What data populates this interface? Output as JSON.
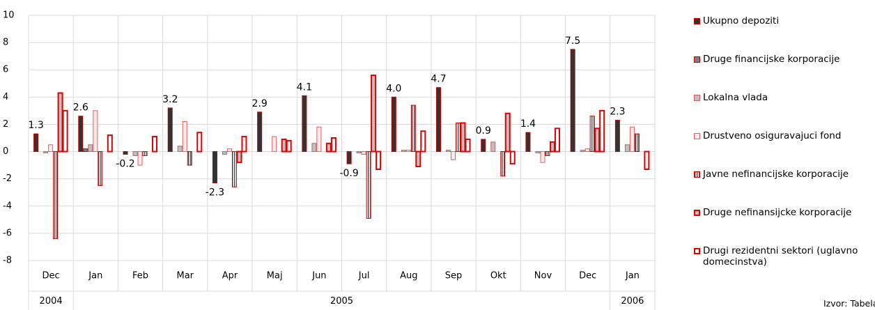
{
  "chart_data": {
    "type": "bar",
    "categories": [
      "Dec",
      "Jan",
      "Feb",
      "Mar",
      "Apr",
      "Maj",
      "Jun",
      "Jul",
      "Aug",
      "Sep",
      "Okt",
      "Nov",
      "Dec",
      "Jan"
    ],
    "years": [
      "2004",
      "2005",
      "2005",
      "2005",
      "2005",
      "2005",
      "2005",
      "2005",
      "2005",
      "2005",
      "2005",
      "2005",
      "2005",
      "2006"
    ],
    "ylim": [
      -8,
      10
    ],
    "yticks": [
      -8,
      -6,
      -4,
      -2,
      0,
      2,
      4,
      6,
      8,
      10
    ],
    "grid": true,
    "series": [
      {
        "name": "Ukupno depoziti",
        "color": "#333333",
        "edgecolor": "#c00000",
        "values": [
          1.3,
          2.6,
          -0.2,
          3.2,
          -2.3,
          2.9,
          4.1,
          -0.9,
          4.0,
          4.7,
          0.9,
          1.4,
          7.5,
          2.3
        ],
        "value_labels": [
          "1.3",
          "2.6",
          "-0.2",
          "3.2",
          "-2.3",
          "2.9",
          "4.1",
          "-0.9",
          "4.0",
          "4.7",
          "0.9",
          "1.4",
          "7.5",
          "2.3"
        ]
      },
      {
        "name": "Druge financijske korporacije",
        "color": "#7f7f7f",
        "edgecolor": "#c00000",
        "values": [
          0,
          0.2,
          0,
          0,
          0,
          0,
          0,
          0,
          0,
          0,
          0,
          0,
          0,
          0
        ]
      },
      {
        "name": "Lokalna vlada",
        "color": "#c0c0c0",
        "edgecolor": "#c06060",
        "values": [
          -0.1,
          0.5,
          -0.3,
          0.4,
          -0.2,
          0,
          0.6,
          -0.1,
          0.1,
          0.1,
          0.7,
          -0.1,
          0.1,
          0.5
        ]
      },
      {
        "name": "Drustveno osiguravajuci fond",
        "color": "#fde9e9",
        "edgecolor": "#e06060",
        "values": [
          0.5,
          3.0,
          -1.0,
          2.2,
          0.2,
          1.1,
          1.8,
          -0.2,
          0.1,
          -0.6,
          0,
          -0.8,
          0.2,
          1.8
        ]
      },
      {
        "name": "Javne nefinancijske korporacije",
        "color": "hatch",
        "edgecolor": "#c00000",
        "values": [
          -6.4,
          -2.5,
          -0.3,
          -1.0,
          -2.6,
          0,
          0,
          -4.9,
          3.4,
          2.1,
          -1.8,
          -0.3,
          2.6,
          1.3
        ]
      },
      {
        "name": "Druge nefinansijcke korporacije",
        "color": "#c0c0c0",
        "edgecolor": "#e00000",
        "values": [
          4.3,
          0,
          0,
          0,
          -0.8,
          0.9,
          0.6,
          5.6,
          -1.1,
          2.1,
          2.8,
          0.7,
          1.7,
          0
        ]
      },
      {
        "name": "Drugi rezidentni sektori (uglavno domecinstva)",
        "color": "#ffffff",
        "edgecolor": "#e00000",
        "values": [
          3.0,
          1.2,
          1.1,
          1.4,
          1.1,
          0.8,
          1.0,
          -1.3,
          1.5,
          0.9,
          -0.9,
          1.7,
          3.0,
          -1.3
        ]
      }
    ]
  },
  "source": "Izvor: Tabela"
}
